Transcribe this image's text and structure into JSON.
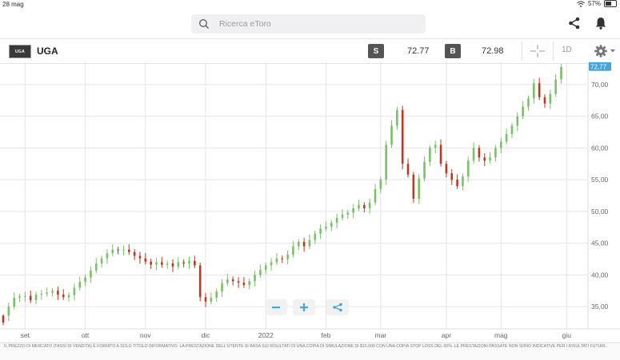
{
  "status_bar": {
    "date": "28 mag",
    "battery": "57%",
    "battery_fraction": 0.57
  },
  "search": {
    "placeholder": "Ricerca eToro"
  },
  "instrument": {
    "logo_text": "UGA",
    "symbol": "UGA",
    "sell_label": "S",
    "sell_price": "72.77",
    "buy_label": "B",
    "buy_price": "72.98",
    "timeframe": "1D"
  },
  "colors": {
    "up": "#7cbf6b",
    "down": "#b83a22",
    "accent_blue": "#4aa3d8",
    "grid": "#e4e4e4"
  },
  "chart_data": {
    "type": "candlestick",
    "title": "UGA",
    "current_price_label": "72,77",
    "current_price": 72.77,
    "ylim": [
      31.5,
      73.5
    ],
    "y_ticks": [
      {
        "value": 35,
        "label": "35,00"
      },
      {
        "value": 40,
        "label": "40,00"
      },
      {
        "value": 45,
        "label": "45,00"
      },
      {
        "value": 50,
        "label": "50,00"
      },
      {
        "value": 55,
        "label": "55,00"
      },
      {
        "value": 60,
        "label": "60,00"
      },
      {
        "value": 65,
        "label": "65,00"
      },
      {
        "value": 70,
        "label": "70,00"
      }
    ],
    "x_ticks": [
      {
        "day": 8,
        "label": "set"
      },
      {
        "day": 30,
        "label": "ott"
      },
      {
        "day": 52,
        "label": "nov"
      },
      {
        "day": 74,
        "label": "dic"
      },
      {
        "day": 96,
        "label": "2022"
      },
      {
        "day": 118,
        "label": "feb"
      },
      {
        "day": 138,
        "label": "mar"
      },
      {
        "day": 162,
        "label": "apr"
      },
      {
        "day": 182,
        "label": "mag"
      },
      {
        "day": 206,
        "label": "giu"
      }
    ],
    "close_series": [
      [
        0,
        33.6
      ],
      [
        2,
        35.0
      ],
      [
        4,
        36.4
      ],
      [
        6,
        36.6
      ],
      [
        8,
        36.7
      ],
      [
        10,
        36.0
      ],
      [
        12,
        36.9
      ],
      [
        14,
        37.0
      ],
      [
        16,
        37.2
      ],
      [
        18,
        37.5
      ],
      [
        20,
        36.9
      ],
      [
        22,
        36.5
      ],
      [
        24,
        36.8
      ],
      [
        26,
        38.0
      ],
      [
        28,
        38.9
      ],
      [
        30,
        39.6
      ],
      [
        32,
        40.7
      ],
      [
        34,
        41.8
      ],
      [
        36,
        42.6
      ],
      [
        38,
        43.4
      ],
      [
        40,
        44.0
      ],
      [
        42,
        43.9
      ],
      [
        44,
        44.0
      ],
      [
        46,
        43.6
      ],
      [
        48,
        43.0
      ],
      [
        50,
        42.6
      ],
      [
        52,
        42.1
      ],
      [
        54,
        41.6
      ],
      [
        56,
        42.0
      ],
      [
        58,
        41.6
      ],
      [
        60,
        41.8
      ],
      [
        62,
        41.3
      ],
      [
        64,
        42.0
      ],
      [
        66,
        41.8
      ],
      [
        68,
        42.2
      ],
      [
        70,
        41.5
      ],
      [
        72,
        36.5
      ],
      [
        74,
        35.8
      ],
      [
        76,
        36.4
      ],
      [
        78,
        37.4
      ],
      [
        80,
        38.7
      ],
      [
        82,
        39.3
      ],
      [
        84,
        39.0
      ],
      [
        86,
        38.8
      ],
      [
        88,
        38.4
      ],
      [
        90,
        39.0
      ],
      [
        92,
        40.0
      ],
      [
        94,
        40.8
      ],
      [
        96,
        41.5
      ],
      [
        98,
        42.0
      ],
      [
        100,
        42.6
      ],
      [
        102,
        42.5
      ],
      [
        104,
        43.2
      ],
      [
        106,
        44.5
      ],
      [
        108,
        45.2
      ],
      [
        110,
        44.5
      ],
      [
        112,
        45.5
      ],
      [
        114,
        46.5
      ],
      [
        116,
        47.3
      ],
      [
        118,
        47.6
      ],
      [
        120,
        48.2
      ],
      [
        122,
        49.0
      ],
      [
        124,
        49.5
      ],
      [
        126,
        49.8
      ],
      [
        128,
        50.5
      ],
      [
        130,
        51.0
      ],
      [
        132,
        50.5
      ],
      [
        134,
        51.4
      ],
      [
        136,
        53.5
      ],
      [
        138,
        55.0
      ],
      [
        140,
        60.5
      ],
      [
        142,
        63.5
      ],
      [
        144,
        66.0
      ],
      [
        146,
        57.5
      ],
      [
        148,
        55.8
      ],
      [
        150,
        52.0
      ],
      [
        152,
        55.2
      ],
      [
        154,
        57.8
      ],
      [
        156,
        60.0
      ],
      [
        158,
        60.5
      ],
      [
        160,
        57.5
      ],
      [
        162,
        56.0
      ],
      [
        164,
        55.0
      ],
      [
        166,
        54.0
      ],
      [
        168,
        55.5
      ],
      [
        170,
        58.0
      ],
      [
        172,
        60.0
      ],
      [
        174,
        58.5
      ],
      [
        176,
        58.0
      ],
      [
        178,
        58.5
      ],
      [
        180,
        60.0
      ],
      [
        182,
        61.0
      ],
      [
        184,
        62.2
      ],
      [
        186,
        63.5
      ],
      [
        188,
        65.0
      ],
      [
        190,
        66.5
      ],
      [
        192,
        67.8
      ],
      [
        194,
        70.2
      ],
      [
        196,
        68.0
      ],
      [
        198,
        67.0
      ],
      [
        200,
        68.5
      ],
      [
        202,
        70.8
      ],
      [
        204,
        72.77
      ]
    ],
    "candles": [
      {
        "open": 32.5,
        "high": 33.8,
        "low": 32.1,
        "close": 33.6
      }
    ]
  },
  "controls": {
    "zoom_out": "−",
    "zoom_in": "+",
    "share": "share"
  },
  "disclaimer": "IL PREZZO DI MERCATO (TASSI DI VENDITA) È FORNITO A SOLO TITOLO INFORMATIVO. LA PRESTAZIONE DELL'UTENTE SI BASA SUI RISULTATI DI UNA COPIA DI SIMULAZIONE DI $10.000 CON UNA COPIA STOP LOSS DEL 60%. LE PRESTAZIONI PASSATE NON SONO INDICATIVE PER I RISULTATI FUTURI."
}
